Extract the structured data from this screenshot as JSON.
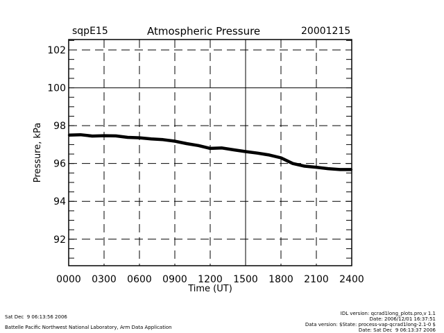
{
  "header": {
    "site": "sqpE15",
    "title": "Atmospheric Pressure",
    "date": "20001215"
  },
  "footer": {
    "left": [
      "Sat Dec  9 06:13:56 2006",
      "Battelle Pacific Northwest National Laboratory, Arm Data Application"
    ],
    "right": [
      "IDL version: qcrad1long_plots.pro,v 1.1",
      "Date: 2006/12/01 16:37:51",
      "Data version: $State: process-vap-qcrad1long-2.1-0 $",
      "Date: Sat Dec  9 06:13:37 2006"
    ]
  },
  "chart_data": {
    "type": "line",
    "title": "Atmospheric Pressure",
    "xlabel": "Time (UT)",
    "ylabel": "Pressure, kPa",
    "xlim": [
      0,
      24
    ],
    "ylim": [
      90.6,
      102.55
    ],
    "xticks": [
      0,
      3,
      6,
      9,
      12,
      15,
      18,
      21,
      24
    ],
    "xtick_labels": [
      "0000",
      "0300",
      "0600",
      "0900",
      "1200",
      "1500",
      "1800",
      "2100",
      "2400"
    ],
    "yticks": [
      92,
      94,
      96,
      98,
      100,
      102
    ],
    "ytick_labels": [
      "92",
      "94",
      "96",
      "98",
      "100",
      "102"
    ],
    "grid": true,
    "series": [
      {
        "name": "Pressure",
        "x": [
          0,
          1,
          2,
          3,
          4,
          5,
          6,
          7,
          8,
          9,
          10,
          11,
          12,
          13,
          14,
          15,
          16,
          17,
          18,
          19,
          20,
          21,
          22,
          23,
          24
        ],
        "values": [
          97.5,
          97.52,
          97.45,
          97.47,
          97.46,
          97.38,
          97.36,
          97.3,
          97.26,
          97.18,
          97.05,
          96.95,
          96.8,
          96.82,
          96.72,
          96.63,
          96.55,
          96.45,
          96.3,
          96.0,
          95.86,
          95.8,
          95.73,
          95.68,
          95.68
        ]
      }
    ]
  }
}
